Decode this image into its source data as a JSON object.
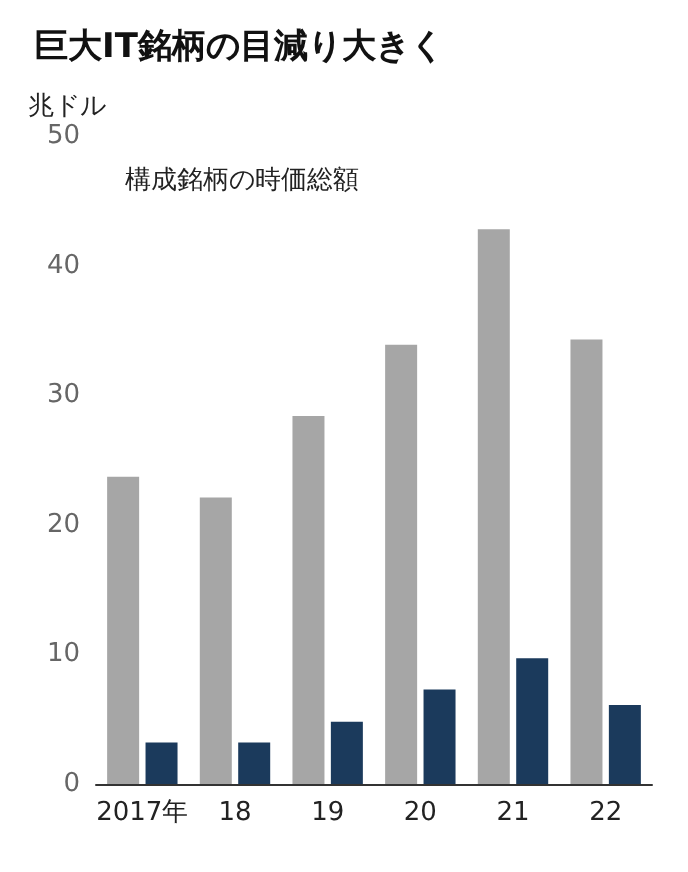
{
  "chart_data": {
    "type": "bar",
    "title": "巨大IT銘柄の目減り大きく",
    "ylabel": "兆ドル",
    "categories": [
      "2017年",
      "18",
      "19",
      "20",
      "21",
      "22"
    ],
    "series": [
      {
        "name": "構成銘柄の時価総額",
        "color": "#a6a6a6",
        "values": [
          23.7,
          22.1,
          28.4,
          33.9,
          42.8,
          34.3
        ]
      },
      {
        "color": "#1b3a5c",
        "values": [
          3.2,
          3.2,
          4.8,
          7.3,
          9.7,
          6.1
        ]
      }
    ],
    "ylim": [
      0,
      50
    ],
    "yticks": [
      0,
      10,
      20,
      30,
      40,
      50
    ],
    "grid": false,
    "legend": false
  }
}
